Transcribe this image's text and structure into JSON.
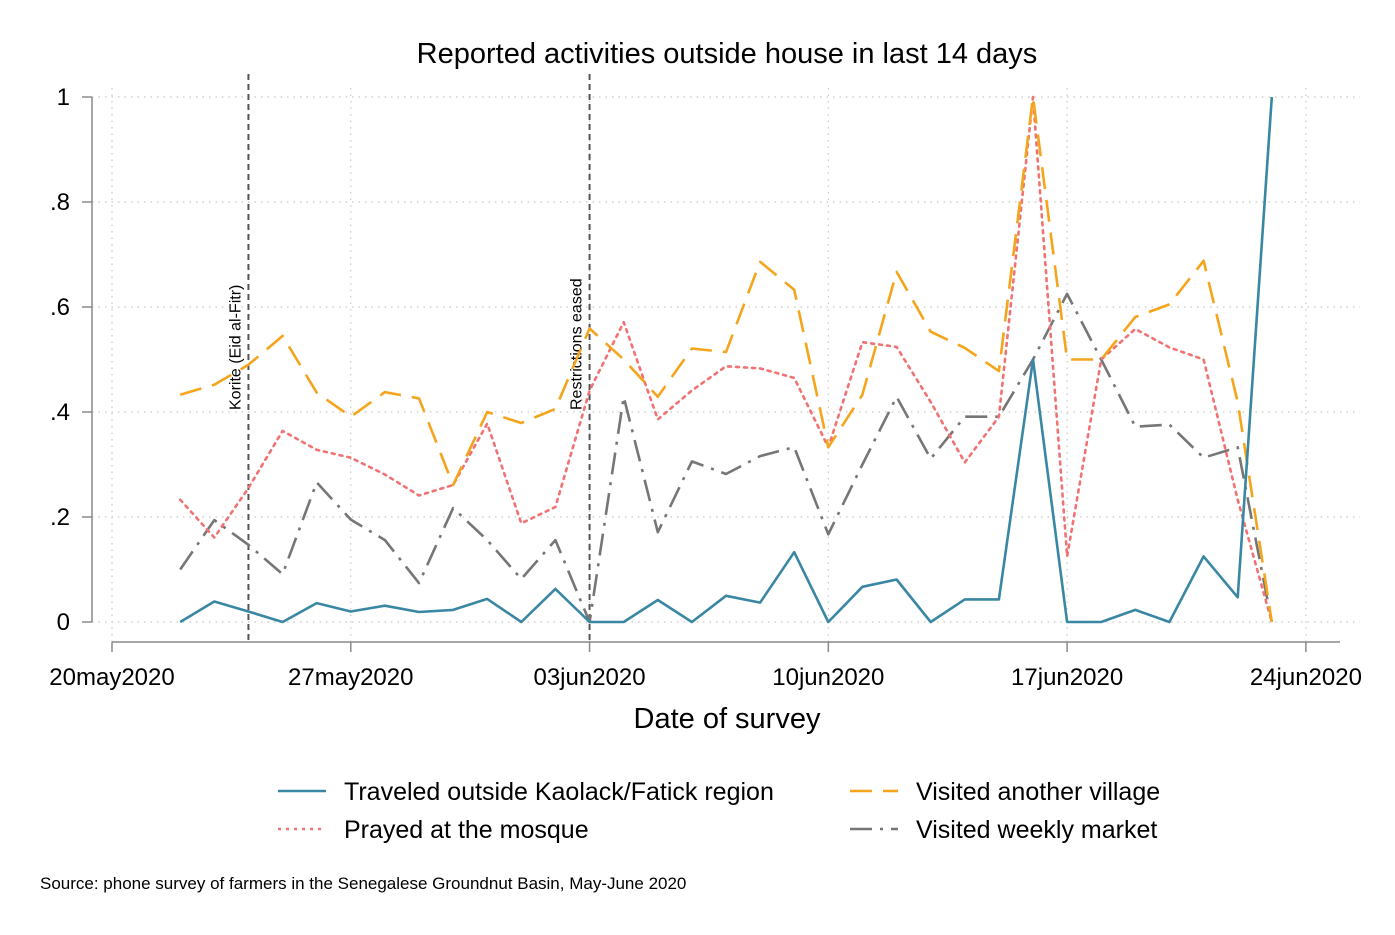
{
  "chart_data": {
    "type": "line",
    "title": "Reported activities outside house in last 14 days",
    "xlabel": "Date of survey",
    "ylabel": "",
    "source_note": "Source: phone survey of farmers in the Senegalese Groundnut Basin, May-June 2020",
    "xlim": [
      "2020-05-20",
      "2020-06-25"
    ],
    "ylim": [
      0,
      1
    ],
    "grid": true,
    "legend_position": "bottom",
    "x_ticks": [
      {
        "date": "2020-05-20",
        "label": "20may2020"
      },
      {
        "date": "2020-05-27",
        "label": "27may2020"
      },
      {
        "date": "2020-06-03",
        "label": "03jun2020"
      },
      {
        "date": "2020-06-10",
        "label": "10jun2020"
      },
      {
        "date": "2020-06-17",
        "label": "17jun2020"
      },
      {
        "date": "2020-06-24",
        "label": "24jun2020"
      }
    ],
    "y_ticks": [
      {
        "value": 0,
        "label": "0"
      },
      {
        "value": 0.2,
        "label": ".2"
      },
      {
        "value": 0.4,
        "label": ".4"
      },
      {
        "value": 0.6,
        "label": ".6"
      },
      {
        "value": 0.8,
        "label": ".8"
      },
      {
        "value": 1,
        "label": "1"
      }
    ],
    "annotations": [
      {
        "date": "2020-05-24",
        "label": "Korite (Eid al-Fitr)"
      },
      {
        "date": "2020-06-03",
        "label": "Restrictions eased"
      }
    ],
    "x": [
      "2020-05-22",
      "2020-05-23",
      "2020-05-24",
      "2020-05-25",
      "2020-05-26",
      "2020-05-27",
      "2020-05-28",
      "2020-05-29",
      "2020-05-30",
      "2020-05-31",
      "2020-06-01",
      "2020-06-02",
      "2020-06-03",
      "2020-06-04",
      "2020-06-05",
      "2020-06-06",
      "2020-06-07",
      "2020-06-08",
      "2020-06-09",
      "2020-06-10",
      "2020-06-11",
      "2020-06-12",
      "2020-06-13",
      "2020-06-14",
      "2020-06-15",
      "2020-06-16",
      "2020-06-17",
      "2020-06-18",
      "2020-06-19",
      "2020-06-20",
      "2020-06-21",
      "2020-06-22",
      "2020-06-23"
    ],
    "series": [
      {
        "name": "Traveled outside Kaolack/Fatick region",
        "color": "#3a87a3",
        "dash": "solid",
        "values": [
          0,
          0.039,
          0.02,
          0,
          0.036,
          0.02,
          0.031,
          0.019,
          0.023,
          0.044,
          0,
          0.063,
          0,
          0,
          0.042,
          0,
          0.05,
          0.037,
          0.133,
          0,
          0.067,
          0.081,
          0,
          0.043,
          0.043,
          0.5,
          0,
          0,
          0.023,
          0,
          0.125,
          0.047,
          1.0
        ]
      },
      {
        "name": "Prayed at the mosque",
        "color": "#f07273",
        "dash": "dotted",
        "values": [
          0.233,
          0.161,
          0.255,
          0.364,
          0.328,
          0.313,
          0.281,
          0.241,
          0.261,
          0.378,
          0.188,
          0.219,
          0.441,
          0.571,
          0.386,
          0.441,
          0.487,
          0.483,
          0.465,
          0.333,
          0.533,
          0.524,
          0.419,
          0.304,
          0.391,
          1.0,
          0.125,
          0.5,
          0.558,
          0.523,
          0.5,
          0.233,
          0
        ]
      },
      {
        "name": "Visited another village",
        "color": "#f4a51c",
        "dash": "longdash",
        "values": [
          0.433,
          0.452,
          0.49,
          0.545,
          0.437,
          0.391,
          0.438,
          0.426,
          0.261,
          0.4,
          0.379,
          0.406,
          0.559,
          0.5,
          0.429,
          0.521,
          0.514,
          0.686,
          0.633,
          0.333,
          0.433,
          0.667,
          0.553,
          0.522,
          0.478,
          1.0,
          0.5,
          0.5,
          0.581,
          0.605,
          0.688,
          0.419,
          0
        ]
      },
      {
        "name": "Visited weekly market",
        "color": "#767676",
        "dash": "dashdot",
        "values": [
          0.1,
          0.194,
          0.147,
          0.091,
          0.266,
          0.195,
          0.156,
          0.074,
          0.217,
          0.156,
          0.082,
          0.156,
          0.0,
          0.429,
          0.171,
          0.306,
          0.282,
          0.316,
          0.333,
          0.167,
          0.3,
          0.429,
          0.311,
          0.391,
          0.391,
          0.5,
          0.625,
          0.5,
          0.372,
          0.376,
          0.313,
          0.333,
          0
        ]
      }
    ]
  }
}
